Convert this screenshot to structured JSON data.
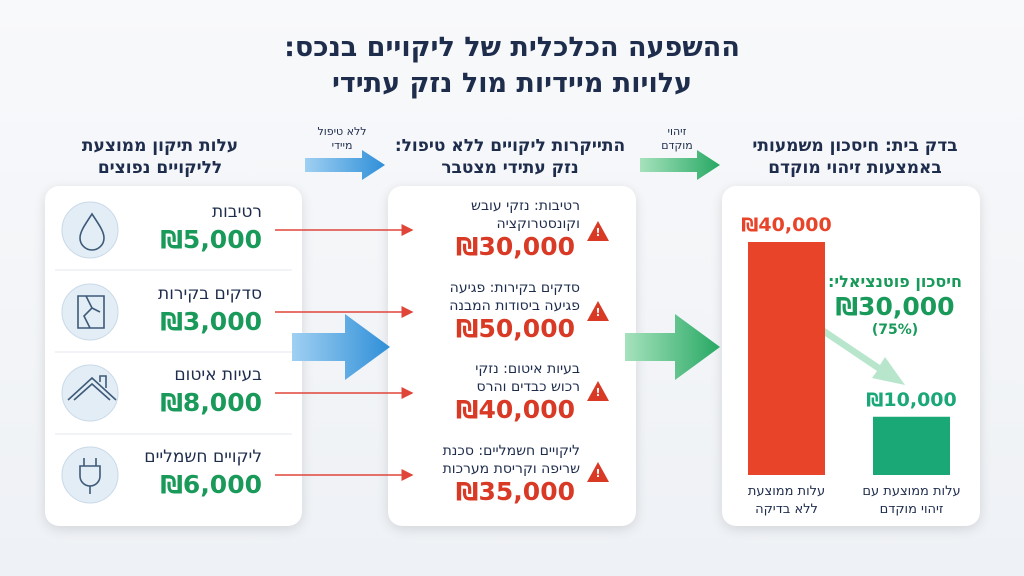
{
  "header": {
    "title_lines": [
      "ההשפעה הכלכלית של ליקויים בנכס:",
      "עלויות מיידיות מול נזק עתידי"
    ]
  },
  "columns": [
    {
      "title_lines": [
        "עלות תיקון ממוצעת",
        "לליקויים נפוצים"
      ]
    },
    {
      "title_lines": [
        "התייקרות ליקויים ללא טיפול:",
        "נזק עתידי מצטבר"
      ]
    },
    {
      "title_lines": [
        "בדק בית: חיסכון משמעותי",
        "באמצעות זיהוי מוקדם"
      ]
    }
  ],
  "arrow_labels": [
    [
      "ללא טיפול",
      "מיידי"
    ],
    [
      "זיהוי",
      "מוקדם"
    ]
  ],
  "defects": [
    {
      "name": "רטיבות",
      "cost": "₪5,000"
    },
    {
      "name": "סדקים בקירות",
      "cost": "₪3,000"
    },
    {
      "name": "בעיות איטום",
      "cost": "₪8,000"
    },
    {
      "name": "ליקויים חשמליים",
      "cost": "₪6,000"
    }
  ],
  "consequences": [
    {
      "lines": [
        "רטיבות: נזקי עובש",
        "וקונסטרוקציה"
      ],
      "cost": "₪30,000"
    },
    {
      "lines": [
        "סדקים בקירות: פגיעה",
        "פגיעה ביסודות המבנה"
      ],
      "cost": "₪50,000"
    },
    {
      "lines": [
        "בעיות איטום: נזקי",
        "רכוש כבדים והרס"
      ],
      "cost": "₪40,000"
    },
    {
      "lines": [
        "ליקויים חשמליים: סכנת",
        "שריפה וקריסת מערכות"
      ],
      "cost": "₪35,000"
    }
  ],
  "savings": {
    "label": "חיסכון פוטנציאלי:",
    "amount": "₪30,000",
    "percent": "(75%)"
  },
  "chart_data": {
    "type": "bar",
    "categories": [
      "עלות ממוצעת ללא בדיקה",
      "עלות ממוצעת עם זיהוי מוקדם"
    ],
    "values": [
      40000,
      10000
    ],
    "value_labels": [
      "₪40,000",
      "₪10,000"
    ],
    "colors": [
      "#e8442a",
      "#1aa876"
    ]
  }
}
